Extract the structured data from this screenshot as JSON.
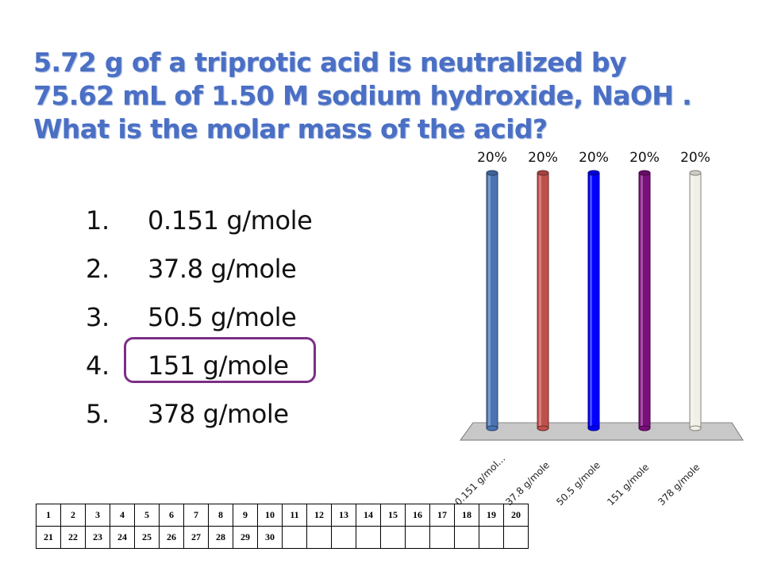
{
  "question": "5.72 g of a triprotic acid is neutralized by 75.62 mL  of 1.50 M sodium hydroxide, NaOH .  What is the molar mass of the acid?",
  "answers": [
    {
      "num": "1.",
      "text": "0.151 g/mole"
    },
    {
      "num": "2.",
      "text": "37.8 g/mole"
    },
    {
      "num": "3.",
      "text": "50.5 g/mole"
    },
    {
      "num": "4.",
      "text": "151 g/mole"
    },
    {
      "num": "5.",
      "text": "378 g/mole"
    }
  ],
  "correct_answer_index": 3,
  "colors": {
    "title": "#4a6fc4",
    "ring": "#7b2f86",
    "bars": [
      "#4a74b4",
      "#c0504d",
      "#0000ff",
      "#7a0f7a",
      "#f2f0e6"
    ]
  },
  "chart_data": {
    "type": "bar",
    "style": "3d-cylinder",
    "categories": [
      "0.151 g/mol...",
      "37.8 g/mole",
      "50.5 g/mole",
      "151 g/mole",
      "378 g/mole"
    ],
    "values": [
      20,
      20,
      20,
      20,
      20
    ],
    "data_labels": [
      "20%",
      "20%",
      "20%",
      "20%",
      "20%"
    ],
    "ylim": [
      0,
      20
    ],
    "grid": false,
    "legend": "none"
  },
  "response_grid": {
    "rows": [
      [
        "1",
        "2",
        "3",
        "4",
        "5",
        "6",
        "7",
        "8",
        "9",
        "10",
        "11",
        "12",
        "13",
        "14",
        "15",
        "16",
        "17",
        "18",
        "19",
        "20"
      ],
      [
        "21",
        "22",
        "23",
        "24",
        "25",
        "26",
        "27",
        "28",
        "29",
        "30",
        "",
        "",
        "",
        "",
        "",
        "",
        "",
        "",
        "",
        ""
      ]
    ]
  }
}
